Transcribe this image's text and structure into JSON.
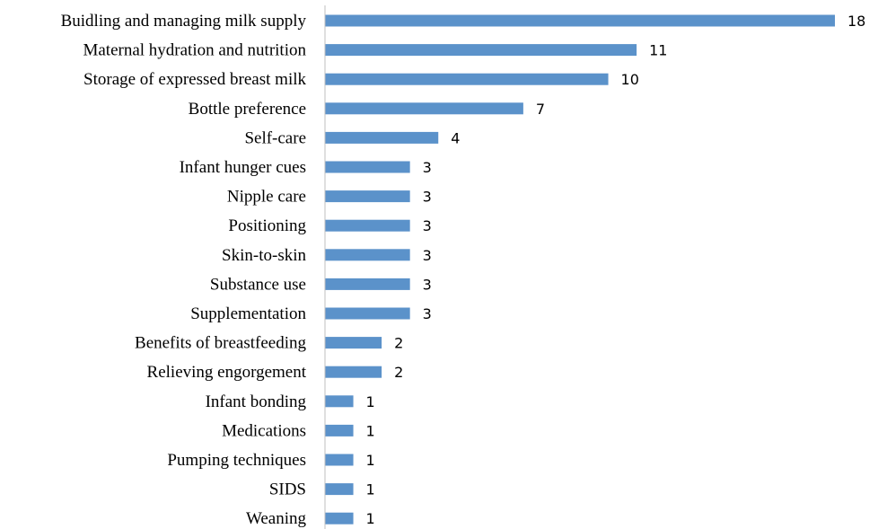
{
  "chart_data": {
    "type": "bar",
    "orientation": "horizontal",
    "title": "",
    "xlabel": "",
    "ylabel": "",
    "categories": [
      "Buidling and managing milk supply",
      "Maternal hydration and nutrition",
      "Storage of expressed breast milk",
      "Bottle preference",
      "Self-care",
      "Infant hunger cues",
      "Nipple care",
      "Positioning",
      "Skin-to-skin",
      "Substance use",
      "Supplementation",
      "Benefits of breastfeeding",
      "Relieving engorgement",
      "Infant bonding",
      "Medications",
      "Pumping techniques",
      "SIDS",
      "Weaning"
    ],
    "values": [
      18,
      11,
      10,
      7,
      4,
      3,
      3,
      3,
      3,
      3,
      3,
      2,
      2,
      1,
      1,
      1,
      1,
      1
    ],
    "xlim": [
      0,
      18
    ],
    "grid": false,
    "legend": "none",
    "data_labels": true,
    "bar_color": "#5b92ca"
  }
}
